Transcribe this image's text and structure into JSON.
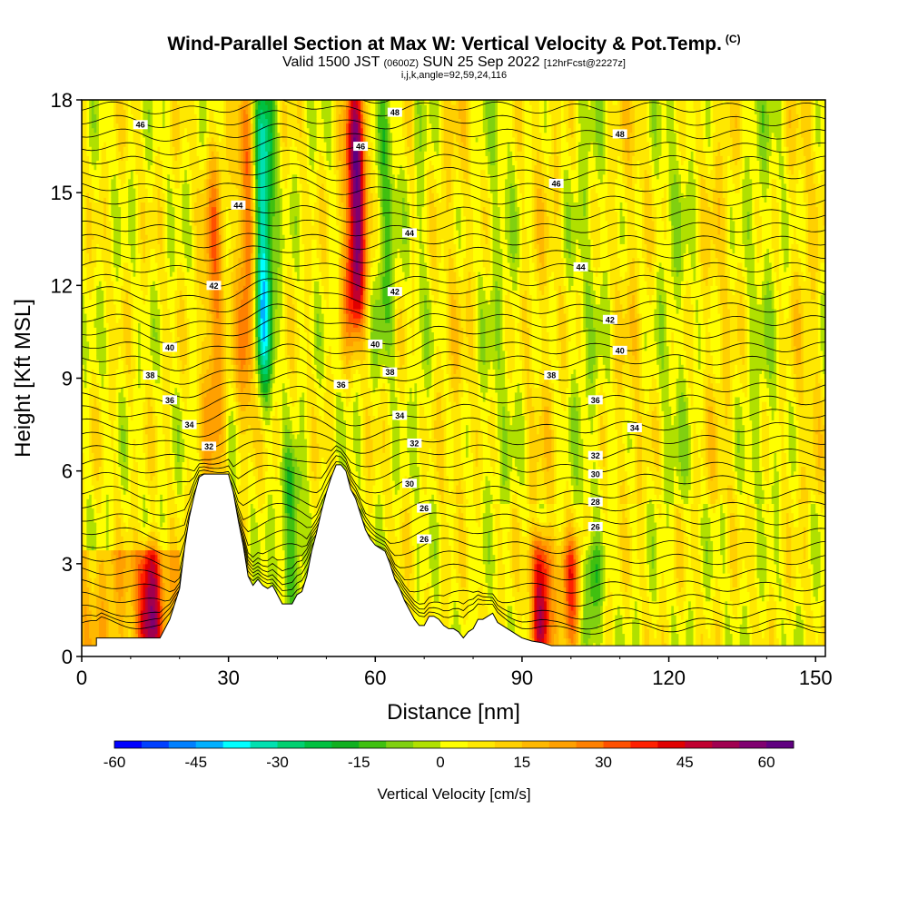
{
  "chart_data": {
    "type": "heatmap",
    "title": {
      "main": "Wind-Parallel Section at Max W: Vertical Velocity & Pot.Temp.",
      "copyright": "(C)",
      "line2_a": "Valid 1500 JST",
      "line2_b": "(0600Z)",
      "line2_c": "SUN 25 Sep 2022",
      "line2_d": "[12hrFcst@2227z]",
      "line3": "i,j,k,angle=92,59,24,116"
    },
    "xlabel": "Distance [nm]",
    "ylabel": "Height [Kft MSL]",
    "xlim": [
      0,
      152
    ],
    "ylim": [
      0,
      18
    ],
    "xticks": [
      0,
      30,
      60,
      90,
      120,
      150
    ],
    "yticks": [
      0,
      3,
      6,
      9,
      12,
      15,
      18
    ],
    "colorbar": {
      "label": "Vertical Velocity [cm/s]",
      "min": -60,
      "max": 60,
      "step": 5,
      "ticks": [
        -60,
        -45,
        -30,
        -15,
        0,
        15,
        30,
        45,
        60
      ],
      "colors": [
        "#0000ff",
        "#0040ff",
        "#0080ff",
        "#00b0ff",
        "#00ffff",
        "#00e0b0",
        "#00d070",
        "#00c040",
        "#10b020",
        "#40c010",
        "#80d010",
        "#b0e000",
        "#ffff00",
        "#ffe800",
        "#ffd000",
        "#ffb800",
        "#ffa000",
        "#ff8000",
        "#ff5000",
        "#ff2000",
        "#e00000",
        "#c00030",
        "#a00050",
        "#800070",
        "#600080"
      ]
    },
    "isentropes": [
      {
        "label": "26",
        "at_x": 70,
        "at_y": 3.8
      },
      {
        "label": "26",
        "at_x": 105,
        "at_y": 4.2
      },
      {
        "label": "26",
        "at_x": 70,
        "at_y": 4.8
      },
      {
        "label": "28",
        "at_x": 105,
        "at_y": 5.0
      },
      {
        "label": "30",
        "at_x": 67,
        "at_y": 5.6
      },
      {
        "label": "30",
        "at_x": 105,
        "at_y": 5.9
      },
      {
        "label": "32",
        "at_x": 26,
        "at_y": 6.8
      },
      {
        "label": "32",
        "at_x": 68,
        "at_y": 6.9
      },
      {
        "label": "32",
        "at_x": 105,
        "at_y": 6.5
      },
      {
        "label": "34",
        "at_x": 22,
        "at_y": 7.5
      },
      {
        "label": "34",
        "at_x": 65,
        "at_y": 7.8
      },
      {
        "label": "34",
        "at_x": 113,
        "at_y": 7.4
      },
      {
        "label": "36",
        "at_x": 18,
        "at_y": 8.3
      },
      {
        "label": "36",
        "at_x": 53,
        "at_y": 8.8
      },
      {
        "label": "36",
        "at_x": 105,
        "at_y": 8.3
      },
      {
        "label": "38",
        "at_x": 14,
        "at_y": 9.1
      },
      {
        "label": "38",
        "at_x": 63,
        "at_y": 9.2
      },
      {
        "label": "38",
        "at_x": 96,
        "at_y": 9.1
      },
      {
        "label": "40",
        "at_x": 18,
        "at_y": 10.0
      },
      {
        "label": "40",
        "at_x": 60,
        "at_y": 10.1
      },
      {
        "label": "40",
        "at_x": 110,
        "at_y": 9.9
      },
      {
        "label": "42",
        "at_x": 27,
        "at_y": 12.0
      },
      {
        "label": "42",
        "at_x": 64,
        "at_y": 11.8
      },
      {
        "label": "42",
        "at_x": 108,
        "at_y": 10.9
      },
      {
        "label": "44",
        "at_x": 32,
        "at_y": 14.6
      },
      {
        "label": "44",
        "at_x": 67,
        "at_y": 13.7
      },
      {
        "label": "44",
        "at_x": 102,
        "at_y": 12.6
      },
      {
        "label": "46",
        "at_x": 57,
        "at_y": 16.5
      },
      {
        "label": "46",
        "at_x": 97,
        "at_y": 15.3
      },
      {
        "label": "46",
        "at_x": 12,
        "at_y": 17.2
      },
      {
        "label": "48",
        "at_x": 64,
        "at_y": 17.6
      },
      {
        "label": "48",
        "at_x": 110,
        "at_y": 16.9
      }
    ],
    "terrain_nm_kft": [
      [
        0,
        0.35
      ],
      [
        3,
        0.35
      ],
      [
        3,
        0.6
      ],
      [
        10,
        0.6
      ],
      [
        10,
        0.6
      ],
      [
        16,
        0.6
      ],
      [
        18,
        1.2
      ],
      [
        20,
        2.2
      ],
      [
        21,
        3.5
      ],
      [
        22,
        4.5
      ],
      [
        23,
        5.2
      ],
      [
        24,
        5.8
      ],
      [
        25,
        5.9
      ],
      [
        30,
        5.9
      ],
      [
        31,
        5.3
      ],
      [
        32,
        4.4
      ],
      [
        33,
        3.6
      ],
      [
        34,
        2.6
      ],
      [
        35,
        2.3
      ],
      [
        36,
        2.5
      ],
      [
        37,
        2.3
      ],
      [
        38,
        2.2
      ],
      [
        39,
        2.3
      ],
      [
        40,
        2.0
      ],
      [
        41,
        1.7
      ],
      [
        42,
        1.7
      ],
      [
        43,
        1.7
      ],
      [
        44,
        2.0
      ],
      [
        45,
        2.1
      ],
      [
        46,
        2.6
      ],
      [
        47,
        3.4
      ],
      [
        48,
        4.0
      ],
      [
        49,
        4.7
      ],
      [
        50,
        5.3
      ],
      [
        51,
        5.8
      ],
      [
        52,
        6.2
      ],
      [
        53,
        6.2
      ],
      [
        54,
        6.0
      ],
      [
        55,
        5.4
      ],
      [
        56,
        5.1
      ],
      [
        57,
        4.6
      ],
      [
        58,
        4.1
      ],
      [
        59,
        3.8
      ],
      [
        60,
        3.6
      ],
      [
        61,
        3.5
      ],
      [
        62,
        3.4
      ],
      [
        63,
        3.0
      ],
      [
        64,
        2.5
      ],
      [
        65,
        2.2
      ],
      [
        66,
        1.8
      ],
      [
        67,
        1.5
      ],
      [
        68,
        1.2
      ],
      [
        69,
        1.0
      ],
      [
        70,
        1.0
      ],
      [
        71,
        1.3
      ],
      [
        72,
        1.3
      ],
      [
        73,
        1.2
      ],
      [
        74,
        1.0
      ],
      [
        75,
        0.9
      ],
      [
        76,
        0.9
      ],
      [
        77,
        0.8
      ],
      [
        78,
        0.6
      ],
      [
        79,
        0.8
      ],
      [
        80,
        0.9
      ],
      [
        81,
        1.2
      ],
      [
        82,
        1.2
      ],
      [
        83,
        1.3
      ],
      [
        84,
        1.4
      ],
      [
        85,
        1.1
      ],
      [
        86,
        1.0
      ],
      [
        87,
        0.9
      ],
      [
        88,
        0.8
      ],
      [
        89,
        0.7
      ],
      [
        90,
        0.6
      ],
      [
        92,
        0.5
      ],
      [
        94,
        0.45
      ],
      [
        96,
        0.35
      ],
      [
        152,
        0.35
      ]
    ],
    "updraft_features": [
      {
        "x": 14,
        "z_top": 3.2,
        "z_bottom": 0.5,
        "w": 40
      },
      {
        "x": 27,
        "z_top": 16,
        "z_bottom": 6,
        "w": 22
      },
      {
        "x": 34,
        "z_top": 18,
        "z_bottom": 8,
        "w": 30
      },
      {
        "x": 37,
        "z_top": 18,
        "z_bottom": 9,
        "w": -45
      },
      {
        "x": 43,
        "z_top": 6,
        "z_bottom": 1.8,
        "w": -20
      },
      {
        "x": 56,
        "z_top": 18,
        "z_bottom": 11,
        "w": 55
      },
      {
        "x": 62,
        "z_top": 18,
        "z_bottom": 10,
        "w": -15
      },
      {
        "x": 94,
        "z_top": 3.5,
        "z_bottom": 0.5,
        "w": 45
      },
      {
        "x": 100,
        "z_top": 3.2,
        "z_bottom": 0.5,
        "w": 30
      },
      {
        "x": 104,
        "z_top": 3.0,
        "z_bottom": 0.5,
        "w": -18
      }
    ]
  }
}
